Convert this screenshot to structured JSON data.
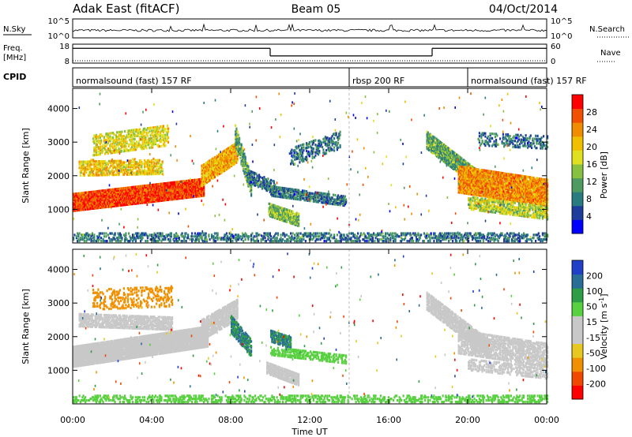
{
  "header": {
    "station": "Adak East (fitACF)",
    "beam": "Beam 05",
    "date": "04/Oct/2014"
  },
  "noise_panel": {
    "left_label": "N.Sky",
    "right_label": "N.Search",
    "left_ticks": [
      "10^5",
      "10^0"
    ],
    "right_ticks": [
      "10^5",
      "10^0"
    ]
  },
  "freq_panel": {
    "left_label_1": "Freq.",
    "left_label_2": "[MHz]",
    "right_label": "Nave",
    "left_ticks": [
      "18",
      "8"
    ],
    "right_ticks": [
      "60",
      "0"
    ],
    "freq_steps": [
      {
        "from_hour": 0.0,
        "to_hour": 10.0,
        "level": 0.78
      },
      {
        "from_hour": 10.0,
        "to_hour": 18.2,
        "level": 0.38
      },
      {
        "from_hour": 18.2,
        "to_hour": 24.0,
        "level": 0.78
      }
    ]
  },
  "cpid": {
    "label": "CPID",
    "segments": [
      {
        "text": "normalsound (fast) 157 RF",
        "start_hour": 0.0
      },
      {
        "text": "rbsp 200 RF",
        "start_hour": 14.0
      },
      {
        "text": "normalsound (fast) 157 RF",
        "start_hour": 20.0
      }
    ]
  },
  "colors": {
    "power_scale": [
      "#0000ff",
      "#1e3c9b",
      "#2a7b80",
      "#4f9a60",
      "#88c040",
      "#e0e020",
      "#f0c000",
      "#f08c00",
      "#f05000",
      "#ff0000"
    ],
    "velocity_scale": [
      "#2040c8",
      "#2a6e96",
      "#2f9c46",
      "#58d040",
      "#c8c8c8",
      "#c8c8c8",
      "#e6c820",
      "#f09000",
      "#f04800",
      "#ff0000"
    ],
    "ground_scatter": "#c0c0b8"
  },
  "chart_data": [
    {
      "type": "heatmap",
      "quantity": "Power",
      "colorbar_label": "Power [dB]",
      "colorbar_ticks": [
        "28",
        "24",
        "20",
        "16",
        "12",
        "8",
        "4"
      ],
      "ylabel": "Slant Range [km]",
      "yticks": [
        "4000",
        "3000",
        "2000",
        "1000"
      ],
      "ylim": [
        0,
        4600
      ],
      "xlim": [
        0,
        24
      ],
      "regions": [
        {
          "t0": 0.0,
          "t1": 6.6,
          "r0": 950,
          "r1": 1450,
          "r_end": 1900,
          "value": 28,
          "density": 0.95
        },
        {
          "t0": 0.3,
          "t1": 4.5,
          "r0": 2000,
          "r1": 2450,
          "r_end": 2500,
          "value": 20,
          "density": 0.55
        },
        {
          "t0": 1.0,
          "t1": 4.8,
          "r0": 2600,
          "r1": 3200,
          "r_end": 3500,
          "value": 18,
          "density": 0.45
        },
        {
          "t0": 6.5,
          "t1": 8.3,
          "r0": 1700,
          "r1": 2300,
          "r_end": 3000,
          "value": 22,
          "density": 0.8
        },
        {
          "t0": 8.2,
          "t1": 9.0,
          "r0": 2900,
          "r1": 3500,
          "r_end": 2000,
          "value": 12,
          "density": 0.7
        },
        {
          "t0": 8.8,
          "t1": 10.2,
          "r0": 1800,
          "r1": 2200,
          "r_end": 1850,
          "value": 8,
          "density": 0.5
        },
        {
          "t0": 10.0,
          "t1": 13.8,
          "r0": 1400,
          "r1": 1700,
          "r_end": 1400,
          "value": 8,
          "density": 0.65
        },
        {
          "t0": 9.9,
          "t1": 11.4,
          "r0": 800,
          "r1": 1200,
          "r_end": 900,
          "value": 14,
          "density": 0.8
        },
        {
          "t0": 11.0,
          "t1": 13.5,
          "r0": 2300,
          "r1": 2800,
          "r_end": 3300,
          "value": 8,
          "density": 0.35
        },
        {
          "t0": 17.9,
          "t1": 21.0,
          "r0": 2800,
          "r1": 3300,
          "r_end": 1900,
          "value": 12,
          "density": 0.8
        },
        {
          "t0": 19.5,
          "t1": 24.0,
          "r0": 1500,
          "r1": 2300,
          "r_end": 1900,
          "value": 24,
          "density": 0.85
        },
        {
          "t0": 20.0,
          "t1": 24.0,
          "r0": 1000,
          "r1": 1400,
          "r_end": 1100,
          "value": 16,
          "density": 0.6
        },
        {
          "t0": 20.5,
          "t1": 24.0,
          "r0": 2900,
          "r1": 3300,
          "r_end": 3200,
          "value": 8,
          "density": 0.3
        },
        {
          "t0": 0.0,
          "t1": 24.0,
          "r0": 50,
          "r1": 300,
          "r_end": 300,
          "value": 8,
          "density": 0.35
        }
      ]
    },
    {
      "type": "heatmap",
      "quantity": "Velocity",
      "colorbar_label": "Velocity [m s^-1]",
      "colorbar_ticks": [
        "200",
        "100",
        "50",
        "15",
        "-15",
        "-50",
        "-100",
        "-200"
      ],
      "ylabel": "Slant Range [km]",
      "yticks": [
        "4000",
        "3000",
        "2000",
        "1000"
      ],
      "ylim": [
        0,
        4600
      ],
      "xlim": [
        0,
        24
      ],
      "xticks": [
        "00:00",
        "04:00",
        "08:00",
        "12:00",
        "16:00",
        "20:00",
        "00:00"
      ],
      "xlabel": "Time UT",
      "regions": [
        {
          "t0": 0.0,
          "t1": 6.8,
          "r0": 1100,
          "r1": 1700,
          "r_end": 2300,
          "value": 0,
          "density": 0.97
        },
        {
          "t0": 0.3,
          "t1": 5.0,
          "r0": 2300,
          "r1": 2700,
          "r_end": 2600,
          "value": 0,
          "density": 0.65
        },
        {
          "t0": 1.0,
          "t1": 5.0,
          "r0": 2800,
          "r1": 3400,
          "r_end": 3500,
          "value": -60,
          "density": 0.25
        },
        {
          "t0": 6.5,
          "t1": 8.3,
          "r0": 1900,
          "r1": 2500,
          "r_end": 3100,
          "value": 0,
          "density": 0.8
        },
        {
          "t0": 8.0,
          "t1": 9.0,
          "r0": 2100,
          "r1": 2600,
          "r_end": 1900,
          "value": 200,
          "density": 0.7
        },
        {
          "t0": 10.0,
          "t1": 11.0,
          "r0": 1850,
          "r1": 2200,
          "r_end": 2000,
          "value": 200,
          "density": 0.7
        },
        {
          "t0": 9.8,
          "t1": 11.4,
          "r0": 900,
          "r1": 1250,
          "r_end": 900,
          "value": 0,
          "density": 0.85
        },
        {
          "t0": 10.0,
          "t1": 13.8,
          "r0": 1450,
          "r1": 1700,
          "r_end": 1450,
          "value": 60,
          "density": 0.5
        },
        {
          "t0": 17.9,
          "t1": 21.0,
          "r0": 2800,
          "r1": 3300,
          "r_end": 1900,
          "value": 0,
          "density": 0.75
        },
        {
          "t0": 19.5,
          "t1": 24.0,
          "r0": 1500,
          "r1": 2200,
          "r_end": 1800,
          "value": 0,
          "density": 0.6
        },
        {
          "t0": 20.0,
          "t1": 24.0,
          "r0": 1000,
          "r1": 1350,
          "r_end": 1100,
          "value": 0,
          "density": 0.4
        },
        {
          "t0": 0.0,
          "t1": 24.0,
          "r0": 50,
          "r1": 250,
          "r_end": 250,
          "value": 80,
          "density": 0.35
        }
      ]
    }
  ]
}
